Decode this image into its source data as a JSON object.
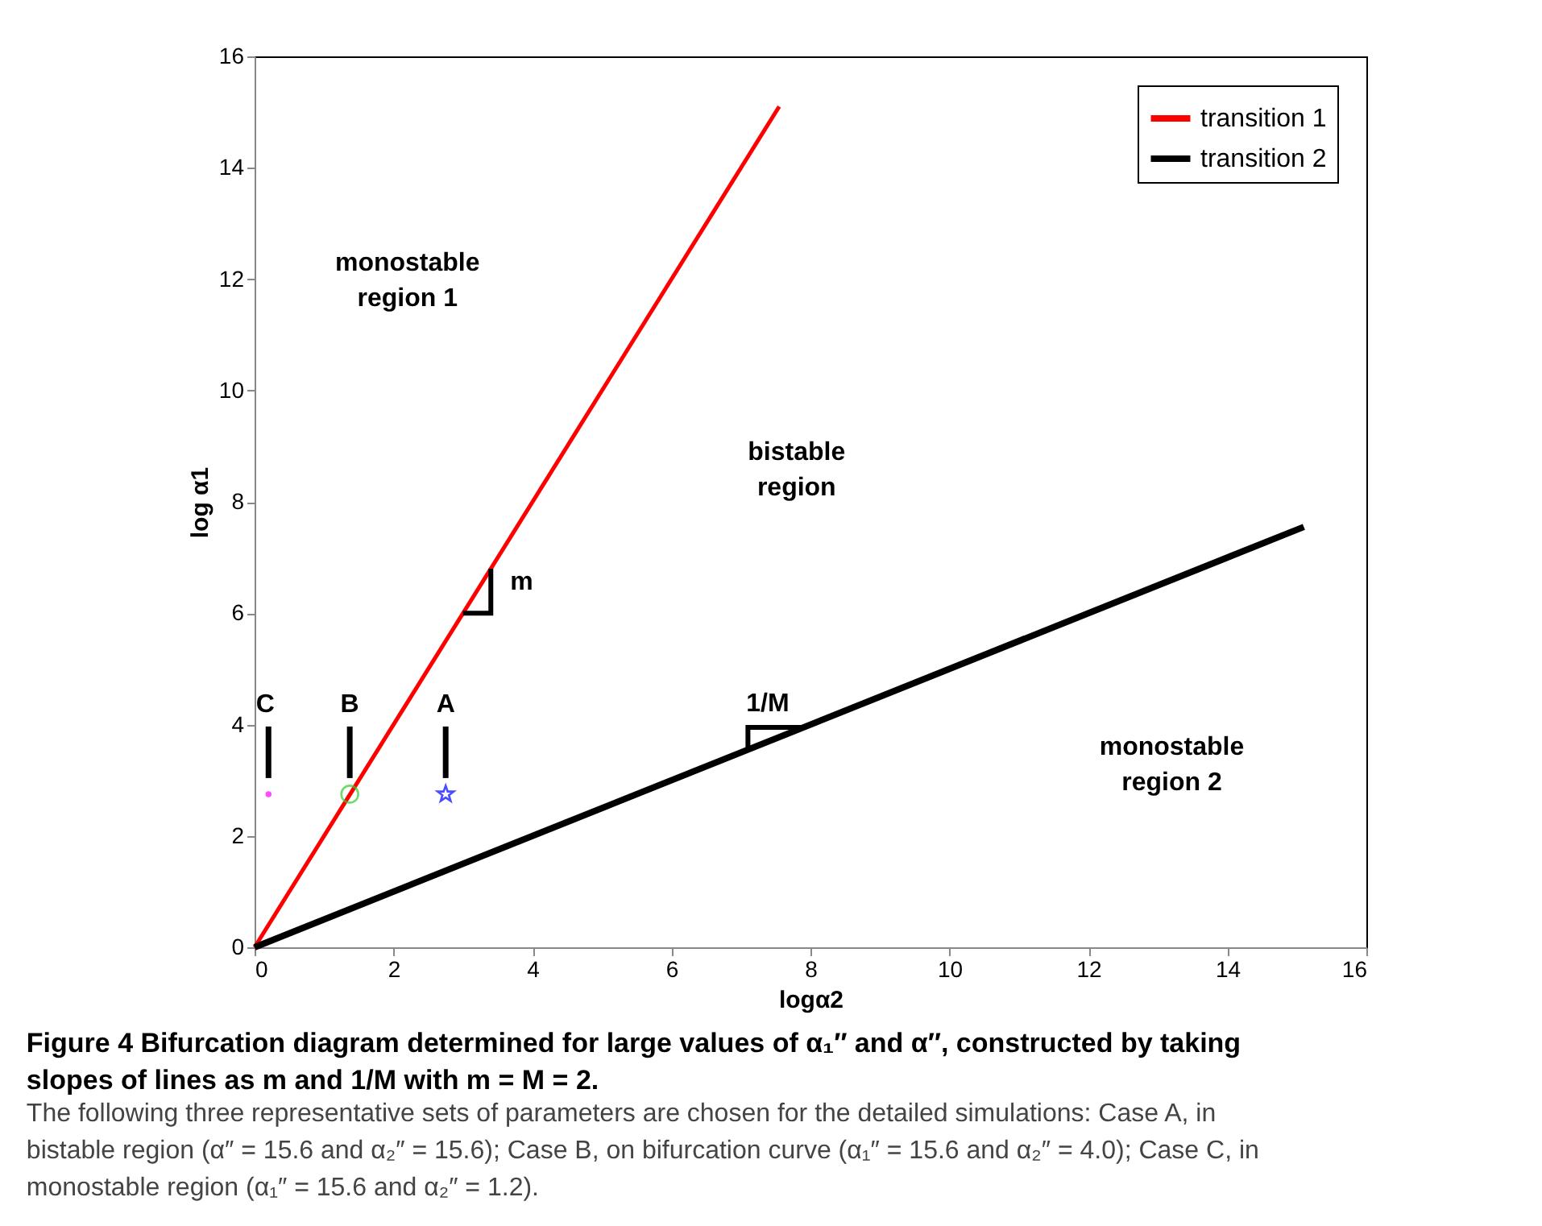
{
  "chart_data": {
    "type": "line",
    "title": "Figure 4 Bifurcation diagram determined for large values of α₁″ and α″, constructed by taking slopes of lines as m and 1/M with m = M = 2.",
    "xlabel": "logα2",
    "ylabel": "log α1",
    "xlim": [
      0,
      16
    ],
    "xticks": [
      0,
      2,
      4,
      6,
      8,
      10,
      12,
      14,
      16
    ],
    "ylim": [
      0,
      16
    ],
    "yticks": [
      0,
      2,
      4,
      6,
      8,
      10,
      12,
      14,
      16
    ],
    "grid": false,
    "legend": "top right",
    "line_style": "solid",
    "series": [
      {
        "name": "transition 1",
        "color": "#ff0000",
        "x": [
          0,
          7.55
        ],
        "values": [
          0,
          15.1
        ]
      },
      {
        "name": "transition 2",
        "color": "#000000",
        "x": [
          0,
          15.1
        ],
        "values": [
          0,
          7.55
        ]
      },
      {
        "type": "scatter",
        "color": "#ff00ff",
        "marker": "circle",
        "x": [
          0.2
        ],
        "values": [
          2.75
        ]
      },
      {
        "type": "scatter",
        "color": "#33cc33",
        "marker": "circle",
        "x": [
          1.37
        ],
        "values": [
          2.75
        ]
      },
      {
        "type": "scatter",
        "color": "#0000ff",
        "marker": "star",
        "x": [
          2.75
        ],
        "values": [
          2.75
        ]
      }
    ],
    "annotations": [
      "monostable\nregion 1",
      "bistable\nregion",
      "monostable\nregion 2",
      {
        "text": "m",
        "x": 3.4,
        "y": 6.8
      },
      {
        "text": "1/M",
        "x": 7.5,
        "y": 3.75
      },
      {
        "text": "C",
        "x": 0.2,
        "y": 2.75
      },
      {
        "text": "B",
        "x": 1.37,
        "y": 2.75
      },
      {
        "text": "A",
        "x": 2.75,
        "y": 2.75
      },
      "The following three representative sets of parameters are chosen for the detailed simulations: Case A, in bistable region (α″ = 15.6 and α₂″ = 15.6); Case B, on bifurcation curve (α₁″ = 15.6 and α₂″ = 4.0); Case C, in monostable region (α₁″ = 15.6 and α₂″ = 1.2)."
    ]
  }
}
